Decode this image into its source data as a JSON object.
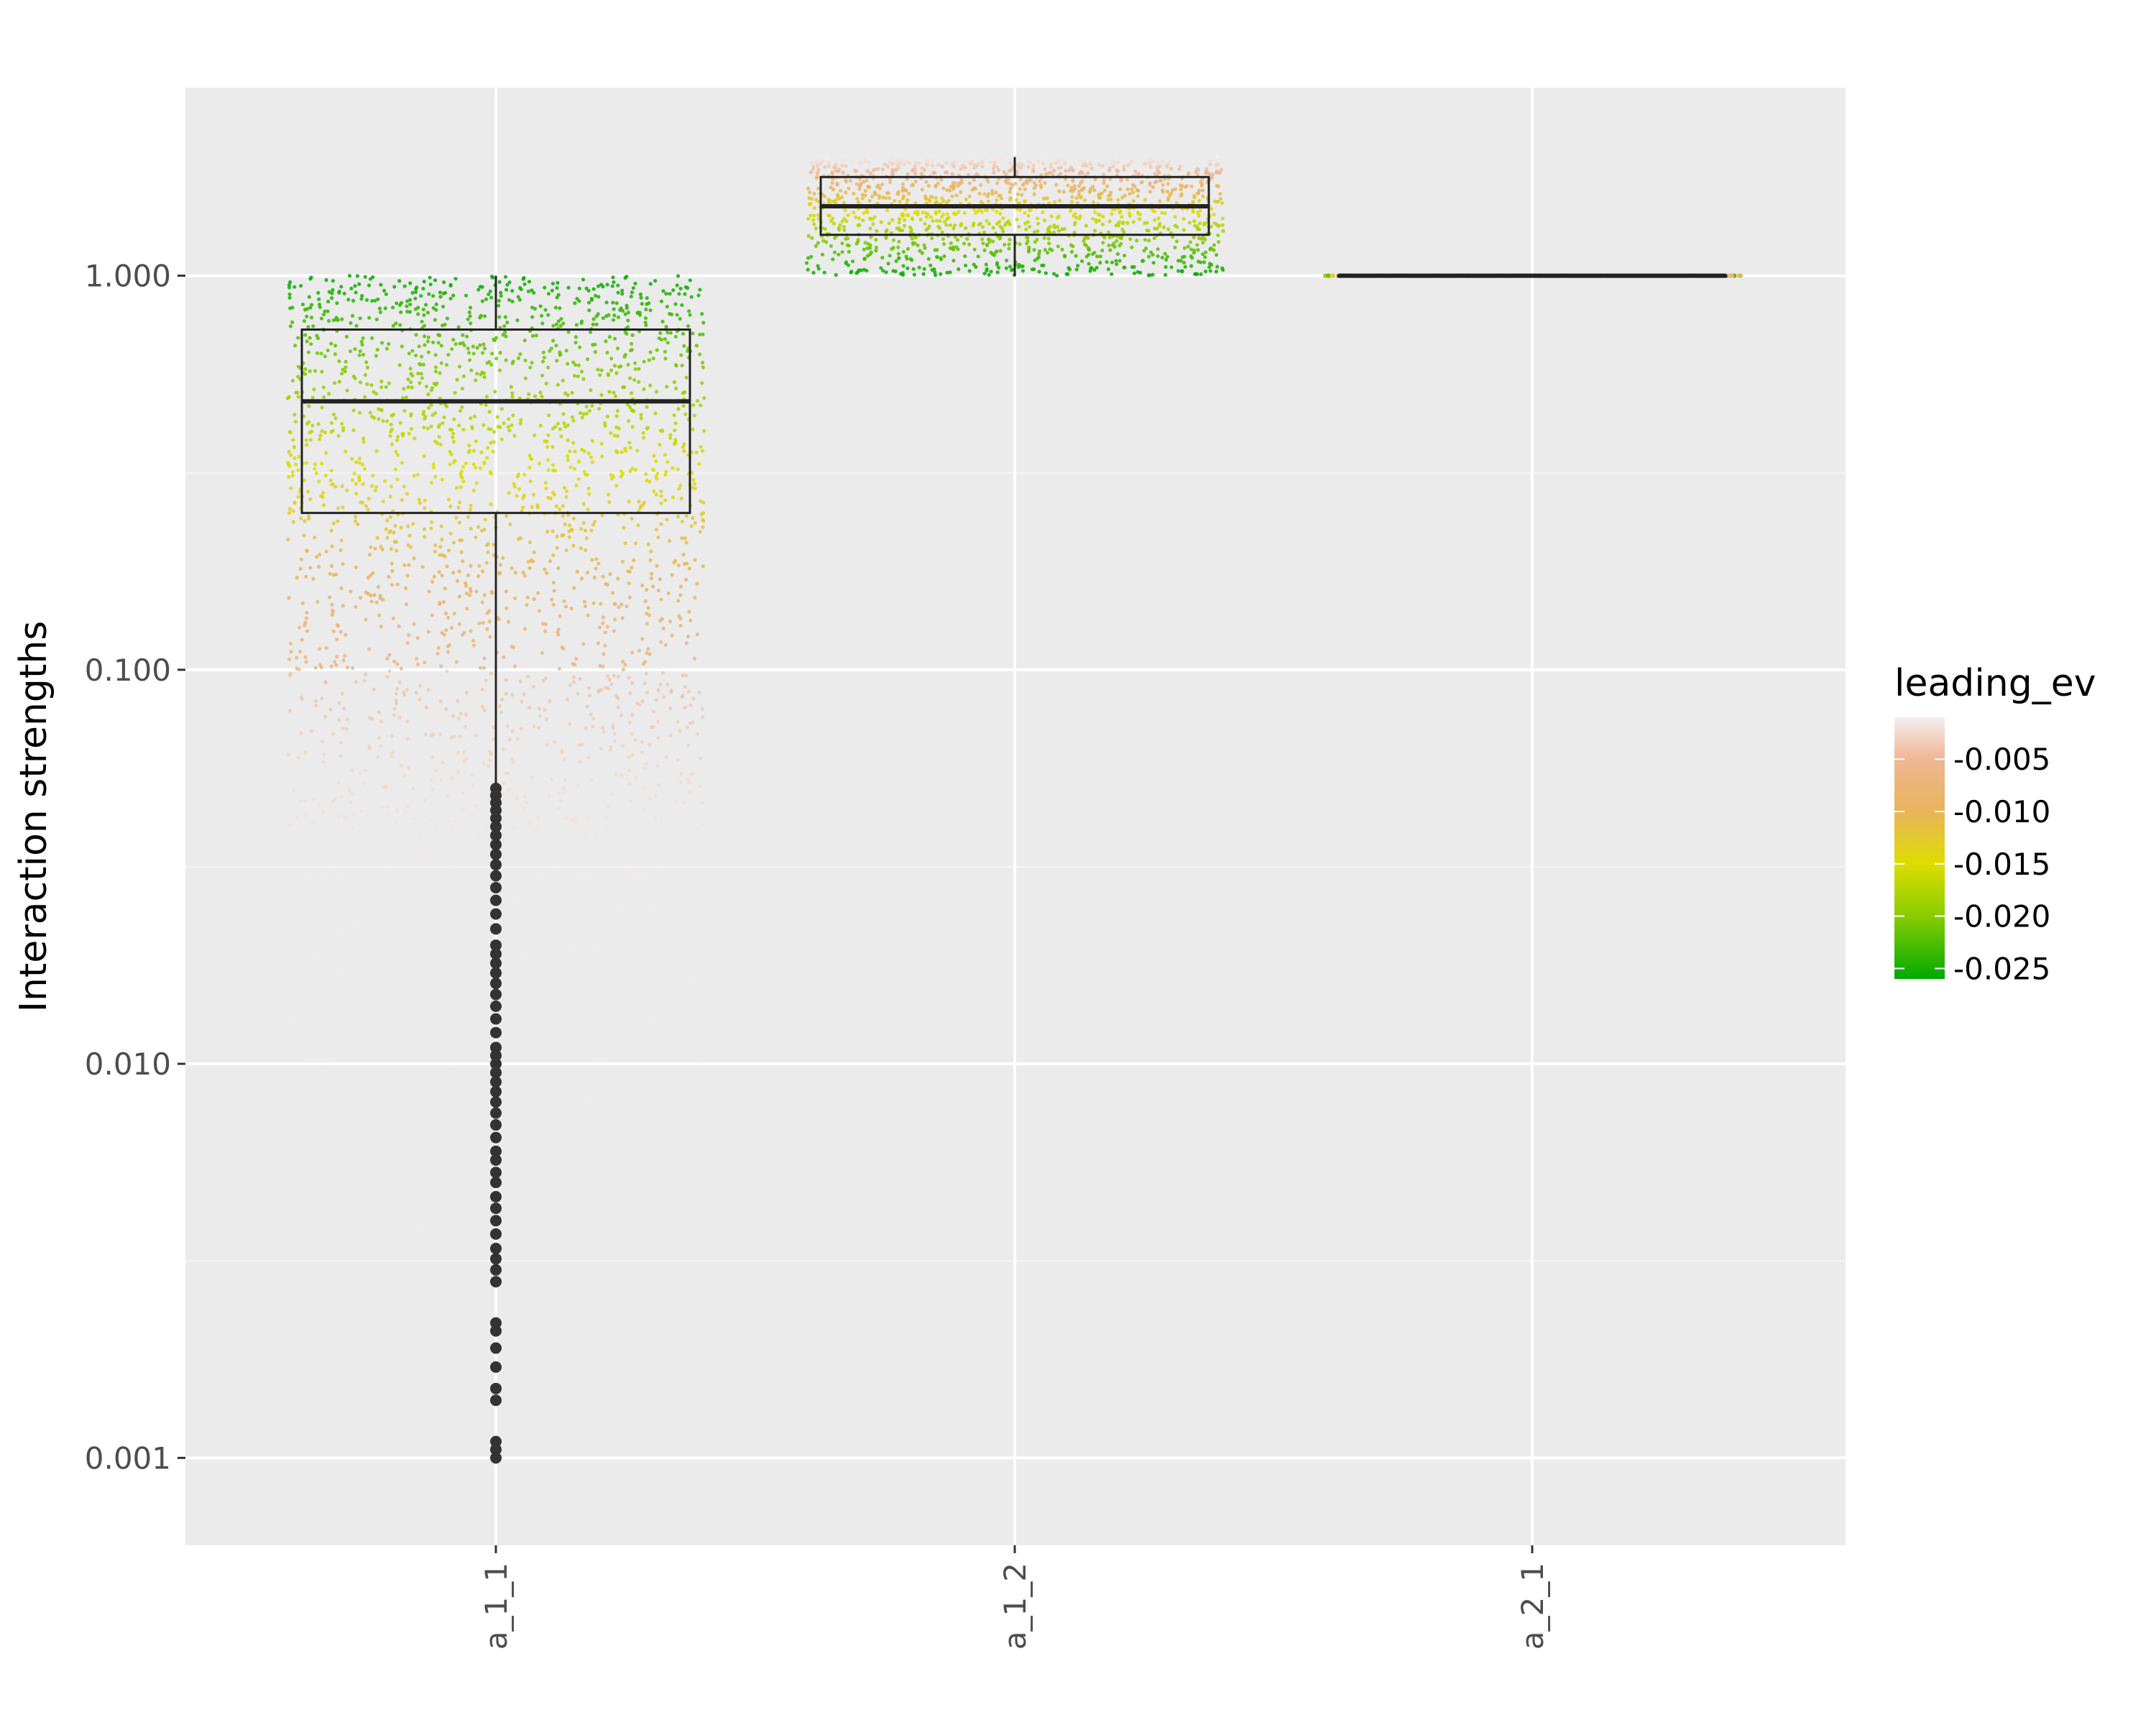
{
  "chart_data": {
    "type": "boxplot",
    "title": "",
    "xlabel": "",
    "ylabel": "Interaction strengths",
    "yscale": "log10",
    "ylim": [
      0.0006,
      3.0
    ],
    "grid": true,
    "categories": [
      "a_1_1",
      "a_1_2",
      "a_2_1"
    ],
    "y_ticks": [
      0.001,
      0.01,
      0.1,
      1.0
    ],
    "y_tick_labels": [
      "0.001",
      "0.010",
      "0.100",
      "1.000"
    ],
    "boxes": [
      {
        "name": "a_1_1",
        "min": 0.05,
        "q1": 0.25,
        "median": 0.48,
        "q3": 0.73,
        "max": 1.0,
        "outliers": [
          0.05,
          0.048,
          0.046,
          0.044,
          0.042,
          0.04,
          0.038,
          0.036,
          0.034,
          0.032,
          0.03,
          0.028,
          0.026,
          0.024,
          0.022,
          0.02,
          0.019,
          0.018,
          0.017,
          0.016,
          0.015,
          0.014,
          0.013,
          0.012,
          0.011,
          0.0105,
          0.01,
          0.0095,
          0.009,
          0.0085,
          0.008,
          0.0075,
          0.007,
          0.0065,
          0.006,
          0.0057,
          0.0053,
          0.005,
          0.0046,
          0.0043,
          0.004,
          0.0037,
          0.0034,
          0.0032,
          0.003,
          0.0028,
          0.0022,
          0.0021,
          0.0019,
          0.0017,
          0.0015,
          0.0014,
          0.0011,
          0.00105,
          0.001
        ]
      },
      {
        "name": "a_1_2",
        "min": 1.0,
        "q1": 1.27,
        "median": 1.5,
        "q3": 1.78,
        "max": 2.0,
        "outliers": []
      },
      {
        "name": "a_2_1",
        "min": 1.0,
        "q1": 1.0,
        "median": 1.0,
        "q3": 1.0,
        "max": 1.0,
        "outliers": []
      }
    ],
    "jitter": {
      "a_1_1": {
        "range": [
          0.001,
          1.0
        ]
      },
      "a_1_2": {
        "range": [
          1.0,
          2.0
        ]
      },
      "a_2_1": {
        "range": [
          1.0,
          1.0
        ]
      }
    },
    "legend": {
      "title": "leading_ev",
      "position": "right",
      "range": [
        -0.026,
        -0.001
      ],
      "ticks": [
        -0.005,
        -0.01,
        -0.015,
        -0.02,
        -0.025
      ],
      "tick_labels": [
        "-0.005",
        "-0.010",
        "-0.015",
        "-0.020",
        "-0.025"
      ],
      "gradient": [
        {
          "value": -0.026,
          "color": "#00aa00"
        },
        {
          "value": -0.02,
          "color": "#88cc00"
        },
        {
          "value": -0.015,
          "color": "#dddd00"
        },
        {
          "value": -0.01,
          "color": "#e8b45a"
        },
        {
          "value": -0.005,
          "color": "#efb696"
        },
        {
          "value": -0.001,
          "color": "#f5eeee"
        }
      ]
    },
    "colors": {
      "panel": "#ebebeb",
      "grid_major": "#ffffff",
      "grid_minor": "#f5f5f5",
      "box_line": "#222222",
      "outlier": "#333333",
      "tick_text": "#4d4d4d"
    }
  }
}
